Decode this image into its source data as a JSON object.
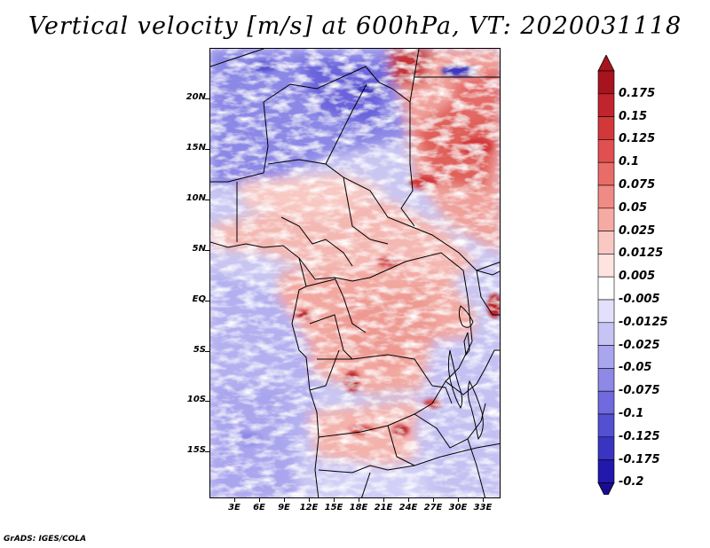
{
  "title": "Vertical velocity [m/s] at 600hPa, VT: 2020031118",
  "credit": "GrADS: IGES/COLA",
  "map": {
    "lon_range": [
      0,
      35
    ],
    "lat_range": [
      -20,
      25
    ],
    "lat_labels": [
      {
        "lat": 20,
        "text": "20N"
      },
      {
        "lat": 15,
        "text": "15N"
      },
      {
        "lat": 10,
        "text": "10N"
      },
      {
        "lat": 5,
        "text": "5N"
      },
      {
        "lat": 0,
        "text": "EQ"
      },
      {
        "lat": -5,
        "text": "5S"
      },
      {
        "lat": -10,
        "text": "10S"
      },
      {
        "lat": -15,
        "text": "15S"
      }
    ],
    "lon_labels": [
      {
        "lon": 3,
        "text": "3E"
      },
      {
        "lon": 6,
        "text": "6E"
      },
      {
        "lon": 9,
        "text": "9E"
      },
      {
        "lon": 12,
        "text": "12E"
      },
      {
        "lon": 15,
        "text": "15E"
      },
      {
        "lon": 18,
        "text": "18E"
      },
      {
        "lon": 21,
        "text": "21E"
      },
      {
        "lon": 24,
        "text": "24E"
      },
      {
        "lon": 27,
        "text": "27E"
      },
      {
        "lon": 30,
        "text": "30E"
      },
      {
        "lon": 33,
        "text": "33E"
      }
    ]
  },
  "colorbar": {
    "levels": [
      {
        "label": "0.175",
        "color": "#a8141e"
      },
      {
        "label": "0.15",
        "color": "#c0242c"
      },
      {
        "label": "0.125",
        "color": "#d2383a"
      },
      {
        "label": "0.1",
        "color": "#e05050"
      },
      {
        "label": "0.075",
        "color": "#ea6c68"
      },
      {
        "label": "0.05",
        "color": "#f08a84"
      },
      {
        "label": "0.025",
        "color": "#f6aaa4"
      },
      {
        "label": "0.0125",
        "color": "#fac8c2"
      },
      {
        "label": "0.005",
        "color": "#fde4e0"
      },
      {
        "label": "-0.005",
        "color": "#ffffff"
      },
      {
        "label": "-0.0125",
        "color": "#e2e0fa"
      },
      {
        "label": "-0.025",
        "color": "#c6c4f4"
      },
      {
        "label": "-0.05",
        "color": "#aaa6ee"
      },
      {
        "label": "-0.075",
        "color": "#8e88e6"
      },
      {
        "label": "-0.1",
        "color": "#706ade"
      },
      {
        "label": "-0.125",
        "color": "#5450d2"
      },
      {
        "label": "-0.175",
        "color": "#3a34c2"
      },
      {
        "label": "-0.2",
        "color": "#2218ac"
      }
    ],
    "top_triangle_color": "#a8141e",
    "bottom_triangle_color": "#1a0c90"
  }
}
